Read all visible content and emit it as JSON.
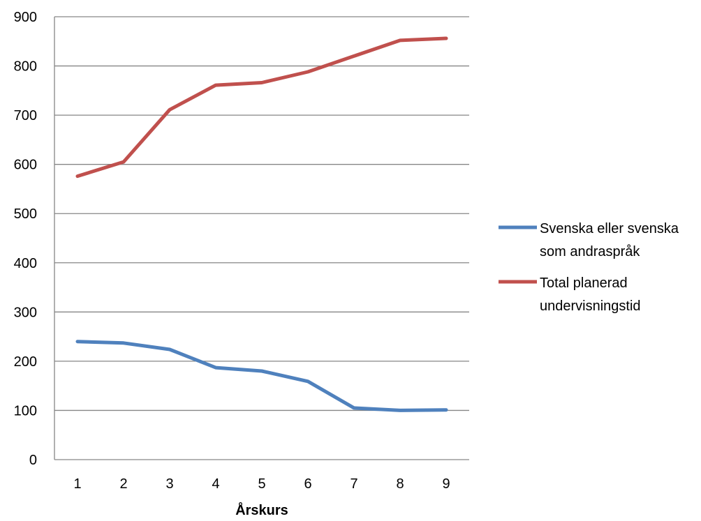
{
  "chart_data": {
    "type": "line",
    "title": "",
    "xlabel": "Årskurs",
    "ylabel": "",
    "categories": [
      "1",
      "2",
      "3",
      "4",
      "5",
      "6",
      "7",
      "8",
      "9"
    ],
    "ylim": [
      0,
      900
    ],
    "yticks": [
      "0",
      "100",
      "200",
      "300",
      "400",
      "500",
      "600",
      "700",
      "800",
      "900"
    ],
    "grid": true,
    "legend_position": "right",
    "series": [
      {
        "name": "Svenska eller svenska som andraspråk",
        "legend_lines": [
          "Svenska eller svenska",
          "som andraspråk"
        ],
        "color": "#4f81bd",
        "values": [
          240,
          237,
          224,
          187,
          180,
          159,
          105,
          100,
          101
        ]
      },
      {
        "name": "Total planerad undervisningstid",
        "legend_lines": [
          "Total planerad",
          "undervisningstid"
        ],
        "color": "#c0504d",
        "values": [
          576,
          605,
          711,
          761,
          766,
          788,
          820,
          852,
          856
        ]
      }
    ]
  }
}
